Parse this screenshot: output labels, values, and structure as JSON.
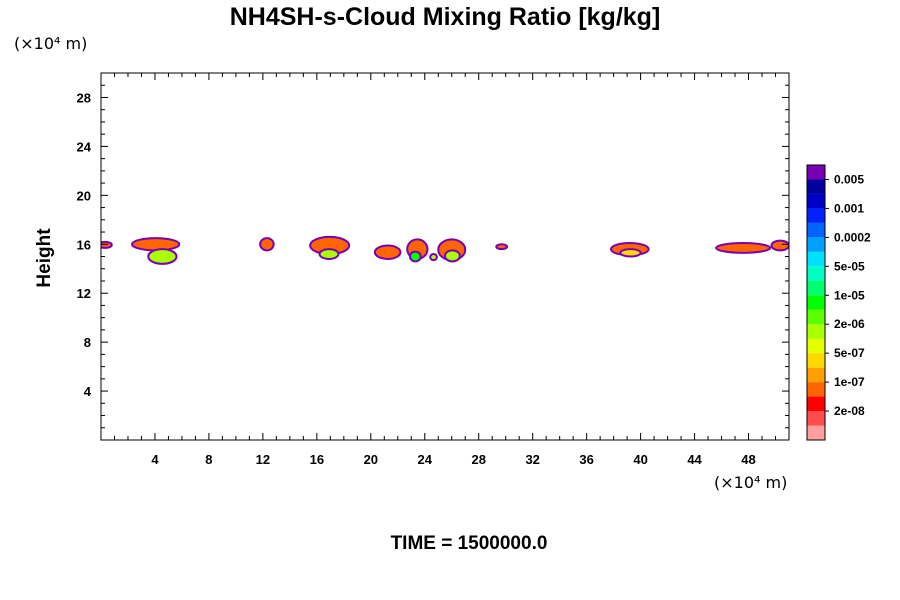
{
  "chart_data": {
    "type": "heatmap",
    "title": "NH4SH-s-Cloud Mixing Ratio [kg/kg]",
    "ylabel": "Height",
    "y_unit": "(×10⁴ m)",
    "x_unit": "(×10⁴ m)",
    "time_text": "TIME = 1500000.0",
    "xlim": [
      0,
      51
    ],
    "ylim": [
      0,
      30
    ],
    "x_ticks": [
      4,
      8,
      12,
      16,
      20,
      24,
      28,
      32,
      36,
      40,
      44,
      48
    ],
    "y_ticks": [
      4,
      8,
      12,
      16,
      20,
      24,
      28
    ],
    "colorbar": {
      "labels": [
        "0.005",
        "0.001",
        "0.0002",
        "5e-05",
        "1e-05",
        "2e-06",
        "5e-07",
        "1e-07",
        "2e-08"
      ],
      "colors": [
        "#ff9e9e",
        "#ff4b4b",
        "#ff0000",
        "#ff6400",
        "#ffa000",
        "#ffd800",
        "#e4ff00",
        "#aaff00",
        "#5aff00",
        "#00ff00",
        "#00ff6e",
        "#00ffc0",
        "#00e0ff",
        "#00a0ff",
        "#0064ff",
        "#0020ff",
        "#0000c8",
        "#00009c",
        "#7800b4"
      ]
    },
    "cloud_patches": [
      {
        "x": [
          -0.2,
          0.8
        ],
        "y": [
          15.7,
          16.2
        ],
        "level": "1e-07"
      },
      {
        "x": [
          2.3,
          5.8
        ],
        "y": [
          15.5,
          16.5
        ],
        "level": "1e-07"
      },
      {
        "x": [
          3.5,
          5.6
        ],
        "y": [
          14.4,
          15.6
        ],
        "level": "2e-06"
      },
      {
        "x": [
          11.8,
          12.8
        ],
        "y": [
          15.5,
          16.5
        ],
        "level": "1e-07"
      },
      {
        "x": [
          15.5,
          18.4
        ],
        "y": [
          15.2,
          16.6
        ],
        "level": "1e-07"
      },
      {
        "x": [
          16.2,
          17.6
        ],
        "y": [
          14.8,
          15.6
        ],
        "level": "2e-06"
      },
      {
        "x": [
          20.3,
          22.2
        ],
        "y": [
          14.8,
          15.9
        ],
        "level": "1e-07"
      },
      {
        "x": [
          22.7,
          24.2
        ],
        "y": [
          14.8,
          16.4
        ],
        "level": "1e-07"
      },
      {
        "x": [
          22.9,
          23.7
        ],
        "y": [
          14.6,
          15.4
        ],
        "level": "1e-05"
      },
      {
        "x": [
          24.4,
          24.9
        ],
        "y": [
          14.7,
          15.2
        ],
        "level": "2e-06"
      },
      {
        "x": [
          25.0,
          27.0
        ],
        "y": [
          14.7,
          16.4
        ],
        "level": "1e-07"
      },
      {
        "x": [
          25.5,
          26.6
        ],
        "y": [
          14.6,
          15.5
        ],
        "level": "2e-06"
      },
      {
        "x": [
          29.3,
          30.1
        ],
        "y": [
          15.6,
          16.0
        ],
        "level": "1e-07"
      },
      {
        "x": [
          37.8,
          40.6
        ],
        "y": [
          15.1,
          16.1
        ],
        "level": "1e-07"
      },
      {
        "x": [
          38.5,
          40.0
        ],
        "y": [
          15.0,
          15.6
        ],
        "level": "5e-07"
      },
      {
        "x": [
          45.6,
          49.6
        ],
        "y": [
          15.3,
          16.1
        ],
        "level": "1e-07"
      },
      {
        "x": [
          49.7,
          51.0
        ],
        "y": [
          15.5,
          16.3
        ],
        "level": "1e-07"
      }
    ]
  }
}
